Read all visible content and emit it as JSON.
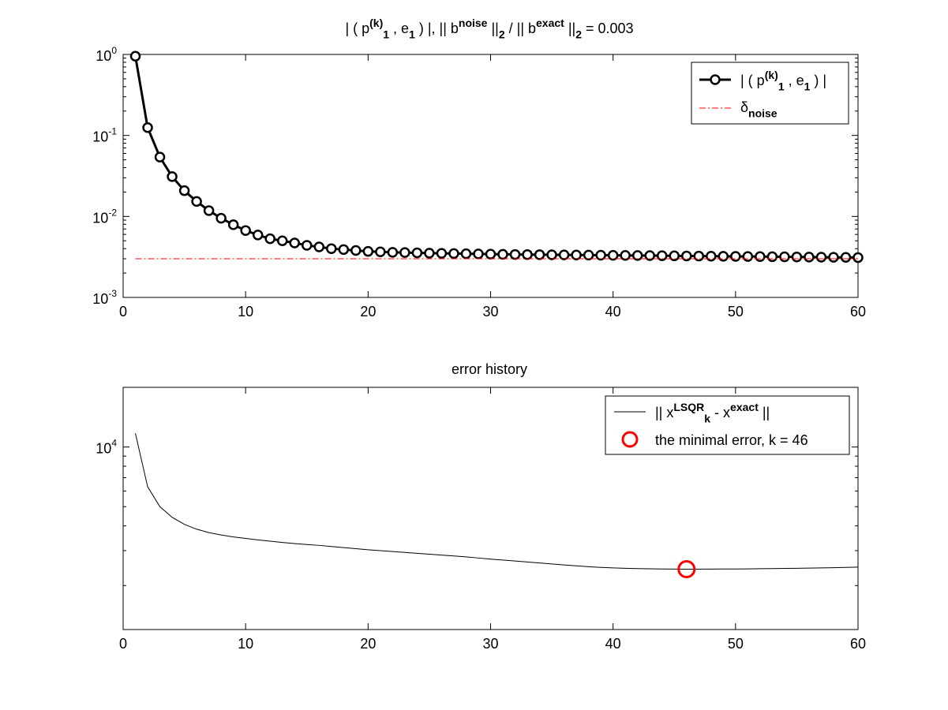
{
  "chart_data": [
    {
      "type": "line",
      "title_parts": [
        {
          "t": "| ( p",
          "s": "n"
        },
        {
          "t": "(k)",
          "s": "sup"
        },
        {
          "t": "1",
          "s": "sub"
        },
        {
          "t": " , e",
          "s": "n"
        },
        {
          "t": "1",
          "s": "sub"
        },
        {
          "t": " ) |,   || b",
          "s": "n"
        },
        {
          "t": "noise",
          "s": "sup"
        },
        {
          "t": " ||",
          "s": "n"
        },
        {
          "t": "2",
          "s": "sub"
        },
        {
          "t": " / || b",
          "s": "n"
        },
        {
          "t": "exact",
          "s": "sup"
        },
        {
          "t": " ||",
          "s": "n"
        },
        {
          "t": "2",
          "s": "sub"
        },
        {
          "t": " = 0.003",
          "s": "n"
        }
      ],
      "yscale": "log",
      "xlim": [
        0,
        60
      ],
      "ylim": [
        0.001,
        1
      ],
      "xticks": [
        0,
        10,
        20,
        30,
        40,
        50,
        60
      ],
      "yticks": [
        {
          "value": 0.001,
          "base": "10",
          "exp": "-3"
        },
        {
          "value": 0.01,
          "base": "10",
          "exp": "-2"
        },
        {
          "value": 0.1,
          "base": "10",
          "exp": "-1"
        },
        {
          "value": 1,
          "base": "10",
          "exp": "0"
        }
      ],
      "grid": false,
      "legend_position": "top-right",
      "series": [
        {
          "legend_parts": [
            {
              "t": "| ( p",
              "s": "n"
            },
            {
              "t": "(k)",
              "s": "sup"
            },
            {
              "t": "1",
              "s": "sub"
            },
            {
              "t": " , e",
              "s": "n"
            },
            {
              "t": "1",
              "s": "sub"
            },
            {
              "t": " ) |",
              "s": "n"
            }
          ],
          "color": "#000000",
          "style": "solid-thick-circle-markers",
          "x": [
            1,
            2,
            3,
            4,
            5,
            6,
            7,
            8,
            9,
            10,
            11,
            12,
            13,
            14,
            15,
            16,
            17,
            18,
            19,
            20,
            21,
            22,
            23,
            24,
            25,
            26,
            27,
            28,
            29,
            30,
            31,
            32,
            33,
            34,
            35,
            36,
            37,
            38,
            39,
            40,
            41,
            42,
            43,
            44,
            45,
            46,
            47,
            48,
            49,
            50,
            51,
            52,
            53,
            54,
            55,
            56,
            57,
            58,
            59,
            60
          ],
          "y": [
            0.95,
            0.125,
            0.054,
            0.031,
            0.0208,
            0.0153,
            0.0118,
            0.0095,
            0.0079,
            0.0067,
            0.0059,
            0.0053,
            0.005,
            0.0047,
            0.0044,
            0.0042,
            0.004,
            0.0039,
            0.0038,
            0.0037,
            0.00365,
            0.0036,
            0.00358,
            0.00355,
            0.00352,
            0.0035,
            0.00348,
            0.00346,
            0.00344,
            0.00342,
            0.0034,
            0.00339,
            0.00338,
            0.00337,
            0.00336,
            0.00335,
            0.00334,
            0.00333,
            0.00332,
            0.00331,
            0.0033,
            0.00329,
            0.00328,
            0.00327,
            0.00326,
            0.00325,
            0.00324,
            0.00323,
            0.00322,
            0.00321,
            0.0032,
            0.00319,
            0.00318,
            0.00317,
            0.00316,
            0.00315,
            0.00314,
            0.00313,
            0.00312,
            0.0031
          ]
        },
        {
          "legend_parts": [
            {
              "t": "δ",
              "s": "n"
            },
            {
              "t": "noise",
              "s": "sub"
            }
          ],
          "color": "#ff0000",
          "style": "dash-dot",
          "x": [
            1,
            60
          ],
          "y": [
            0.003,
            0.003
          ]
        }
      ]
    },
    {
      "type": "line",
      "title": "error history",
      "yscale": "log",
      "xlim": [
        0,
        60
      ],
      "ylim": [
        1200,
        20000
      ],
      "xticks": [
        0,
        10,
        20,
        30,
        40,
        50,
        60
      ],
      "yticks": [
        {
          "value": 10000,
          "base": "10",
          "exp": "4"
        }
      ],
      "grid": false,
      "legend_position": "top-right",
      "series": [
        {
          "legend_parts": [
            {
              "t": "|| x",
              "s": "n"
            },
            {
              "t": "LSQR",
              "s": "sup"
            },
            {
              "t": "k",
              "s": "sub"
            },
            {
              "t": " - x",
              "s": "n"
            },
            {
              "t": "exact",
              "s": "sup"
            },
            {
              "t": " ||",
              "s": "n"
            }
          ],
          "color": "#000000",
          "style": "solid-thin",
          "x": [
            1,
            2,
            3,
            4,
            5,
            6,
            7,
            8,
            9,
            10,
            11,
            12,
            13,
            14,
            15,
            16,
            17,
            18,
            19,
            20,
            21,
            22,
            23,
            24,
            25,
            26,
            27,
            28,
            29,
            30,
            31,
            32,
            33,
            34,
            35,
            36,
            37,
            38,
            39,
            40,
            41,
            42,
            43,
            44,
            45,
            46,
            47,
            48,
            49,
            50,
            51,
            52,
            53,
            54,
            55,
            56,
            57,
            58,
            59,
            60
          ],
          "y": [
            11720,
            6300,
            5000,
            4420,
            4070,
            3850,
            3700,
            3600,
            3520,
            3460,
            3400,
            3350,
            3300,
            3260,
            3220,
            3190,
            3150,
            3110,
            3070,
            3030,
            3000,
            2970,
            2940,
            2910,
            2880,
            2850,
            2820,
            2790,
            2755,
            2720,
            2690,
            2660,
            2630,
            2600,
            2570,
            2540,
            2515,
            2490,
            2470,
            2455,
            2445,
            2435,
            2430,
            2425,
            2422,
            2420,
            2420,
            2422,
            2424,
            2426,
            2428,
            2432,
            2436,
            2440,
            2445,
            2450,
            2456,
            2462,
            2470,
            2478
          ]
        },
        {
          "legend_parts": [
            {
              "t": "the minimal error, k = 46",
              "s": "n"
            }
          ],
          "color": "#ff0000",
          "style": "circle-marker",
          "x": [
            46
          ],
          "y": [
            2420
          ]
        }
      ]
    }
  ]
}
